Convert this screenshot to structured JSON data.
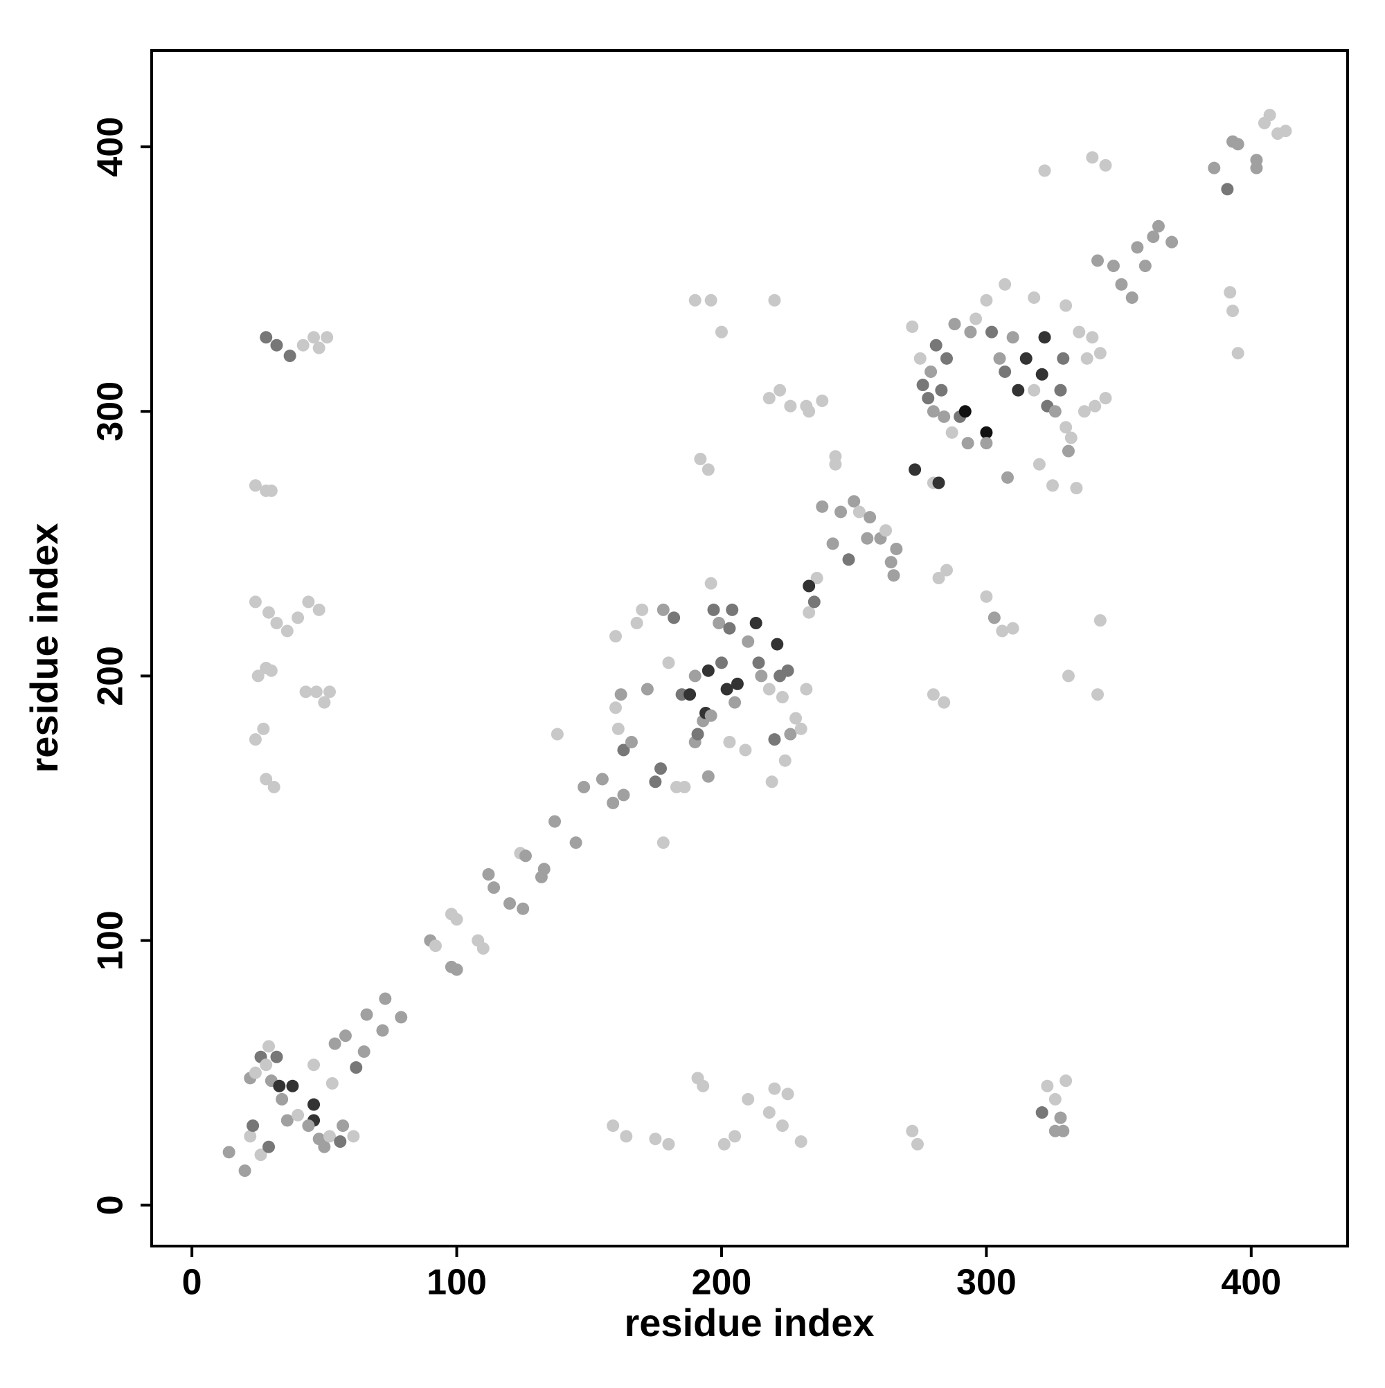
{
  "chart_data": {
    "type": "scatter",
    "xlabel": "residue index",
    "ylabel": "residue index",
    "xlim": [
      -15.2,
      436.4
    ],
    "ylim": [
      -15.5,
      436.4
    ],
    "xticks": [
      0,
      100,
      200,
      300,
      400
    ],
    "yticks": [
      0,
      100,
      200,
      300,
      400
    ],
    "x": [
      14,
      20,
      22,
      23,
      26,
      29,
      22,
      24,
      26,
      28,
      29,
      30,
      32,
      33,
      38,
      34,
      36,
      40,
      46,
      46,
      44,
      48,
      50,
      52,
      56,
      57,
      61,
      46,
      53,
      54,
      58,
      62,
      65,
      66,
      72,
      73,
      79,
      90,
      92,
      98,
      100,
      98,
      100,
      108,
      110,
      112,
      114,
      120,
      125,
      124,
      126,
      132,
      133,
      137,
      145,
      138,
      148,
      159,
      155,
      163,
      160,
      162,
      160,
      161,
      163,
      166,
      168,
      170,
      172,
      175,
      177,
      178,
      180,
      182,
      183,
      185,
      186,
      188,
      190,
      190,
      191,
      193,
      194,
      195,
      196,
      195,
      196,
      197,
      199,
      200,
      202,
      203,
      203,
      204,
      205,
      206,
      209,
      210,
      213,
      214,
      215,
      218,
      219,
      220,
      221,
      222,
      223,
      224,
      225,
      226,
      228,
      230,
      232,
      233,
      236,
      235,
      233,
      178,
      238,
      242,
      245,
      248,
      250,
      252,
      255,
      256,
      260,
      262,
      264,
      265,
      266,
      243,
      243,
      238,
      232,
      272,
      273,
      275,
      276,
      278,
      279,
      280,
      280,
      281,
      282,
      283,
      284,
      285,
      287,
      288,
      290,
      292,
      293,
      294,
      296,
      300,
      300,
      302,
      305,
      307,
      308,
      310,
      312,
      315,
      318,
      320,
      321,
      322,
      323,
      325,
      326,
      328,
      329,
      330,
      331,
      332,
      334,
      335,
      330,
      318,
      307,
      300,
      342,
      348,
      351,
      355,
      357,
      360,
      363,
      365,
      370,
      386,
      391,
      393,
      395,
      402,
      402,
      405,
      407,
      410,
      413,
      392,
      393,
      395,
      340,
      345,
      322,
      343,
      340,
      338,
      337,
      341,
      345,
      342,
      343,
      331,
      282,
      285,
      280,
      284,
      300,
      303,
      306,
      310,
      323,
      326,
      328,
      329,
      330,
      321,
      326,
      218,
      222,
      226,
      233,
      192,
      195,
      190,
      196,
      200,
      220,
      210,
      220,
      225,
      218,
      223,
      230,
      175,
      180,
      201,
      205,
      193,
      191,
      159,
      164,
      272,
      274,
      24,
      28,
      30,
      28,
      32,
      37,
      42,
      46,
      48,
      51,
      24,
      29,
      32,
      36,
      40,
      44,
      48,
      25,
      28,
      30,
      43,
      47,
      50,
      52,
      24,
      27,
      28,
      31
    ],
    "y": [
      20,
      13,
      26,
      30,
      19,
      22,
      48,
      50,
      56,
      53,
      60,
      47,
      56,
      45,
      45,
      40,
      32,
      34,
      38,
      32,
      30,
      25,
      22,
      26,
      24,
      30,
      26,
      53,
      46,
      61,
      64,
      52,
      58,
      72,
      66,
      78,
      71,
      100,
      98,
      90,
      89,
      110,
      108,
      100,
      97,
      125,
      120,
      114,
      112,
      133,
      132,
      124,
      127,
      145,
      137,
      178,
      158,
      152,
      161,
      155,
      215,
      193,
      188,
      180,
      172,
      175,
      220,
      225,
      195,
      160,
      165,
      225,
      205,
      222,
      158,
      193,
      158,
      193,
      175,
      200,
      178,
      183,
      186,
      202,
      185,
      162,
      235,
      225,
      220,
      205,
      195,
      175,
      218,
      225,
      190,
      197,
      172,
      213,
      220,
      205,
      200,
      195,
      160,
      176,
      212,
      200,
      192,
      168,
      202,
      178,
      184,
      180,
      195,
      224,
      237,
      228,
      234,
      137,
      264,
      250,
      262,
      244,
      266,
      262,
      252,
      260,
      252,
      255,
      243,
      238,
      248,
      283,
      280,
      304,
      302,
      332,
      278,
      320,
      310,
      305,
      315,
      300,
      273,
      325,
      273,
      308,
      298,
      320,
      292,
      333,
      298,
      300,
      288,
      330,
      335,
      292,
      288,
      330,
      320,
      315,
      275,
      328,
      308,
      320,
      308,
      280,
      314,
      328,
      302,
      272,
      300,
      308,
      320,
      294,
      285,
      290,
      271,
      330,
      340,
      343,
      348,
      342,
      357,
      355,
      348,
      343,
      362,
      355,
      366,
      370,
      364,
      392,
      384,
      402,
      401,
      392,
      395,
      409,
      412,
      405,
      406,
      345,
      338,
      322,
      396,
      393,
      391,
      322,
      328,
      320,
      300,
      302,
      305,
      193,
      221,
      200,
      237,
      240,
      193,
      190,
      230,
      222,
      217,
      218,
      45,
      40,
      33,
      28,
      47,
      35,
      28,
      305,
      308,
      302,
      300,
      282,
      278,
      342,
      342,
      330,
      342,
      40,
      44,
      42,
      35,
      30,
      24,
      25,
      23,
      23,
      26,
      45,
      48,
      30,
      26,
      28,
      23,
      272,
      270,
      270,
      328,
      325,
      321,
      325,
      328,
      324,
      328,
      228,
      224,
      220,
      217,
      222,
      228,
      225,
      200,
      203,
      202,
      194,
      194,
      190,
      194,
      176,
      180,
      161,
      158
    ],
    "colors": [
      "#a0a0a0",
      "#a0a0a0",
      "#c8c8c8",
      "#777777",
      "#c8c8c8",
      "#777777",
      "#a0a0a0",
      "#c8c8c8",
      "#777777",
      "#c8c8c8",
      "#c8c8c8",
      "#a0a0a0",
      "#777777",
      "#333333",
      "#333333",
      "#a0a0a0",
      "#a0a0a0",
      "#c8c8c8",
      "#333333",
      "#333333",
      "#a0a0a0",
      "#a0a0a0",
      "#a0a0a0",
      "#c8c8c8",
      "#777777",
      "#a0a0a0",
      "#c8c8c8",
      "#c8c8c8",
      "#c8c8c8",
      "#a0a0a0",
      "#a0a0a0",
      "#777777",
      "#a0a0a0",
      "#a0a0a0",
      "#a0a0a0",
      "#a0a0a0",
      "#a0a0a0",
      "#a0a0a0",
      "#c8c8c8",
      "#a0a0a0",
      "#a0a0a0",
      "#c8c8c8",
      "#c8c8c8",
      "#c8c8c8",
      "#c8c8c8",
      "#a0a0a0",
      "#a0a0a0",
      "#a0a0a0",
      "#a0a0a0",
      "#c8c8c8",
      "#a0a0a0",
      "#a0a0a0",
      "#a0a0a0",
      "#a0a0a0",
      "#a0a0a0",
      "#c8c8c8",
      "#a0a0a0",
      "#a0a0a0",
      "#a0a0a0",
      "#a0a0a0",
      "#c8c8c8",
      "#a0a0a0",
      "#c8c8c8",
      "#c8c8c8",
      "#777777",
      "#a0a0a0",
      "#c8c8c8",
      "#c8c8c8",
      "#a0a0a0",
      "#777777",
      "#777777",
      "#a0a0a0",
      "#c8c8c8",
      "#777777",
      "#c8c8c8",
      "#777777",
      "#c8c8c8",
      "#333333",
      "#a0a0a0",
      "#a0a0a0",
      "#777777",
      "#a0a0a0",
      "#333333",
      "#333333",
      "#a0a0a0",
      "#a0a0a0",
      "#c8c8c8",
      "#777777",
      "#a0a0a0",
      "#777777",
      "#333333",
      "#c8c8c8",
      "#777777",
      "#777777",
      "#a0a0a0",
      "#333333",
      "#c8c8c8",
      "#a0a0a0",
      "#333333",
      "#777777",
      "#a0a0a0",
      "#c8c8c8",
      "#c8c8c8",
      "#777777",
      "#333333",
      "#777777",
      "#c8c8c8",
      "#c8c8c8",
      "#777777",
      "#a0a0a0",
      "#c8c8c8",
      "#c8c8c8",
      "#c8c8c8",
      "#c8c8c8",
      "#c8c8c8",
      "#777777",
      "#333333",
      "#c8c8c8",
      "#a0a0a0",
      "#a0a0a0",
      "#a0a0a0",
      "#777777",
      "#a0a0a0",
      "#c8c8c8",
      "#a0a0a0",
      "#a0a0a0",
      "#a0a0a0",
      "#c8c8c8",
      "#a0a0a0",
      "#a0a0a0",
      "#a0a0a0",
      "#c8c8c8",
      "#c8c8c8",
      "#c8c8c8",
      "#c8c8c8",
      "#c8c8c8",
      "#333333",
      "#c8c8c8",
      "#777777",
      "#777777",
      "#a0a0a0",
      "#a0a0a0",
      "#c8c8c8",
      "#777777",
      "#333333",
      "#777777",
      "#a0a0a0",
      "#777777",
      "#c8c8c8",
      "#a0a0a0",
      "#777777",
      "#111111",
      "#a0a0a0",
      "#a0a0a0",
      "#c8c8c8",
      "#111111",
      "#a0a0a0",
      "#777777",
      "#a0a0a0",
      "#777777",
      "#a0a0a0",
      "#a0a0a0",
      "#333333",
      "#333333",
      "#c8c8c8",
      "#c8c8c8",
      "#333333",
      "#333333",
      "#777777",
      "#c8c8c8",
      "#a0a0a0",
      "#777777",
      "#777777",
      "#c8c8c8",
      "#a0a0a0",
      "#c8c8c8",
      "#c8c8c8",
      "#c8c8c8",
      "#c8c8c8",
      "#c8c8c8",
      "#c8c8c8",
      "#c8c8c8",
      "#a0a0a0",
      "#a0a0a0",
      "#a0a0a0",
      "#a0a0a0",
      "#a0a0a0",
      "#a0a0a0",
      "#a0a0a0",
      "#a0a0a0",
      "#a0a0a0",
      "#a0a0a0",
      "#777777",
      "#a0a0a0",
      "#a0a0a0",
      "#a0a0a0",
      "#a0a0a0",
      "#c8c8c8",
      "#c8c8c8",
      "#c8c8c8",
      "#c8c8c8",
      "#c8c8c8",
      "#c8c8c8",
      "#c8c8c8",
      "#c8c8c8",
      "#c8c8c8",
      "#c8c8c8",
      "#c8c8c8",
      "#c8c8c8",
      "#c8c8c8",
      "#c8c8c8",
      "#c8c8c8",
      "#c8c8c8",
      "#c8c8c8",
      "#c8c8c8",
      "#c8c8c8",
      "#c8c8c8",
      "#c8c8c8",
      "#c8c8c8",
      "#c8c8c8",
      "#c8c8c8",
      "#a0a0a0",
      "#c8c8c8",
      "#c8c8c8",
      "#c8c8c8",
      "#c8c8c8",
      "#a0a0a0",
      "#a0a0a0",
      "#c8c8c8",
      "#777777",
      "#a0a0a0",
      "#c8c8c8",
      "#c8c8c8",
      "#c8c8c8",
      "#c8c8c8",
      "#c8c8c8",
      "#c8c8c8",
      "#c8c8c8",
      "#c8c8c8",
      "#c8c8c8",
      "#c8c8c8",
      "#c8c8c8",
      "#c8c8c8",
      "#c8c8c8",
      "#c8c8c8",
      "#c8c8c8",
      "#c8c8c8",
      "#c8c8c8",
      "#c8c8c8",
      "#c8c8c8",
      "#c8c8c8",
      "#c8c8c8",
      "#c8c8c8",
      "#c8c8c8",
      "#c8c8c8",
      "#c8c8c8",
      "#c8c8c8",
      "#c8c8c8",
      "#c8c8c8",
      "#c8c8c8",
      "#777777",
      "#777777",
      "#777777",
      "#c8c8c8",
      "#c8c8c8",
      "#c8c8c8",
      "#c8c8c8",
      "#c8c8c8",
      "#c8c8c8",
      "#c8c8c8",
      "#c8c8c8",
      "#c8c8c8",
      "#c8c8c8",
      "#c8c8c8",
      "#c8c8c8",
      "#c8c8c8",
      "#c8c8c8",
      "#c8c8c8",
      "#c8c8c8",
      "#c8c8c8",
      "#c8c8c8",
      "#c8c8c8",
      "#c8c8c8",
      "#c8c8c8",
      "#c8c8c8"
    ]
  }
}
